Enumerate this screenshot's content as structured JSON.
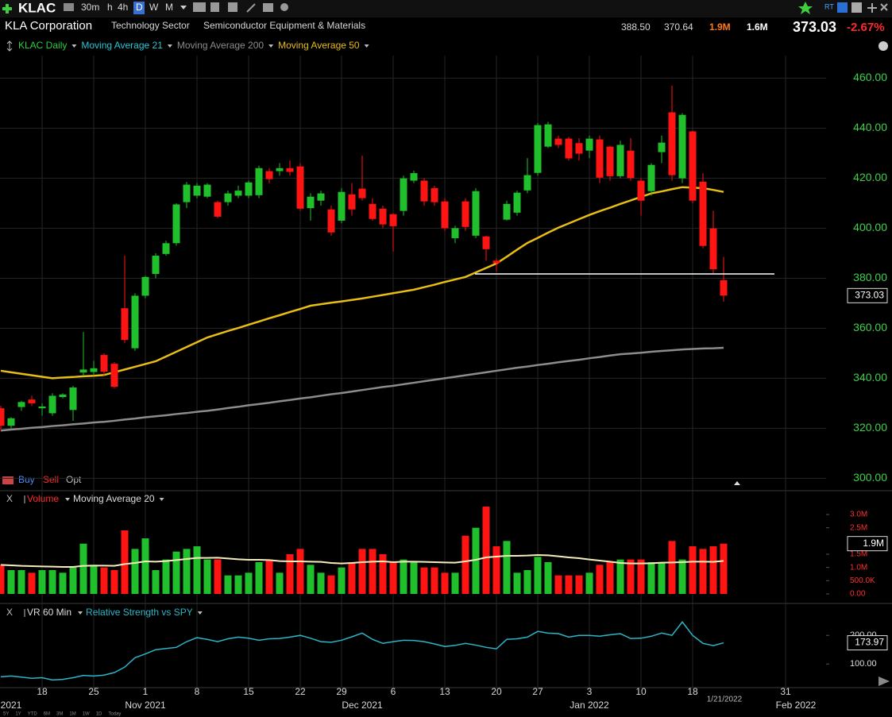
{
  "header": {
    "symbol": "KLAC",
    "intervals": [
      "30m",
      "h",
      "4h",
      "D",
      "W",
      "M"
    ],
    "company": "KLA Corporation",
    "sector": "Technology Sector",
    "industry": "Semiconductor Equipment & Materials",
    "high": "388.50",
    "low": "370.64",
    "volume": "1.9M",
    "avg_volume": "1.6M",
    "price": "373.03",
    "change": "-2.67%",
    "rt_badge": "RT",
    "trade_buttons": [
      "Buy",
      "Sell",
      "Opt"
    ],
    "ranges": [
      "5Y",
      "1Y",
      "YTD",
      "6M",
      "3M",
      "1M",
      "1W",
      "1D",
      "Today"
    ]
  },
  "chart_data": [
    {
      "type": "candlestick",
      "categories": [
        null,
        null,
        null,
        null,
        "18",
        null,
        null,
        null,
        null,
        "25",
        null,
        null,
        null,
        null,
        "1",
        null,
        null,
        null,
        null,
        "8",
        null,
        null,
        null,
        null,
        "15",
        null,
        null,
        null,
        null,
        "22",
        null,
        null,
        null,
        "29",
        null,
        null,
        null,
        null,
        "6",
        null,
        null,
        null,
        null,
        "13",
        null,
        null,
        null,
        null,
        "20",
        null,
        null,
        null,
        "27",
        null,
        null,
        null,
        null,
        "3",
        null,
        null,
        null,
        null,
        "10",
        null,
        null,
        null,
        null,
        "18",
        null,
        null,
        null,
        null,
        null,
        null,
        null,
        null,
        "31",
        null
      ],
      "month_labels": [
        null,
        "2021",
        null,
        null,
        null,
        null,
        null,
        null,
        null,
        null,
        null,
        null,
        null,
        null,
        "Nov 2021",
        null,
        null,
        null,
        null,
        null,
        null,
        null,
        null,
        null,
        null,
        null,
        null,
        null,
        null,
        null,
        null,
        null,
        null,
        null,
        null,
        "Dec 2021",
        null,
        null,
        null,
        null,
        null,
        null,
        null,
        null,
        null,
        null,
        null,
        null,
        null,
        null,
        null,
        null,
        null,
        null,
        null,
        null,
        null,
        "Jan 2022",
        null,
        null,
        null,
        null,
        null,
        null,
        null,
        null,
        null,
        null,
        null,
        null,
        null,
        null,
        null,
        null,
        null,
        null,
        null,
        "Feb 2022"
      ],
      "open": [
        328,
        321,
        328.5,
        331.5,
        328,
        326,
        332.5,
        327.3,
        342.3,
        342.5,
        349.3,
        345.8,
        368,
        352,
        373,
        381.7,
        389.7,
        394,
        410.4,
        413,
        412.6,
        410.4,
        410.4,
        413,
        413,
        413.2,
        422.8,
        422.8,
        424,
        424.7,
        408,
        411,
        407.5,
        403,
        413.5,
        415.8,
        409.7,
        407.8,
        405.6,
        406.9,
        419,
        419,
        416,
        410.7,
        396,
        410.7,
        397,
        396.7,
        387,
        403.4,
        406.2,
        415.1,
        422.1,
        432.6,
        435.8,
        435.8,
        434,
        431,
        435.5,
        432.6,
        420.8,
        431,
        419,
        414.8,
        430.4,
        446.3,
        419.9,
        438.7,
        418.6,
        399.9,
        379.2,
        null,
        null,
        null,
        null,
        null,
        null,
        null
      ],
      "high": [
        329,
        324.5,
        331,
        333,
        330,
        334,
        334,
        337,
        358.5,
        347,
        350,
        346.5,
        389,
        374,
        381,
        390,
        395,
        410,
        418.5,
        418,
        418,
        411,
        415,
        417,
        419,
        425,
        424,
        426,
        427,
        426,
        414,
        415,
        409,
        416,
        418,
        429,
        412,
        409,
        406,
        421,
        423,
        420,
        417,
        412,
        401,
        412,
        416,
        397,
        388,
        411,
        415,
        428,
        442,
        442.5,
        437,
        436.5,
        436,
        437,
        437,
        433,
        435,
        436,
        420,
        426,
        437,
        457,
        446,
        439,
        422,
        407,
        388.5,
        null,
        null,
        null,
        null,
        null,
        null,
        null
      ],
      "low": [
        319,
        320,
        327,
        329,
        325,
        325,
        332,
        323,
        341,
        341,
        341,
        336,
        354,
        351,
        372,
        380,
        389,
        393,
        408,
        412,
        412,
        404,
        409,
        412,
        412,
        412,
        418,
        421,
        421,
        407,
        403,
        409,
        397,
        402,
        405,
        411,
        403,
        400,
        390.6,
        405,
        418,
        409,
        409,
        399,
        394,
        399,
        396,
        387,
        382.7,
        403,
        405,
        414,
        421,
        432,
        432,
        427,
        427,
        428,
        418,
        419,
        420,
        419,
        405,
        413,
        426,
        419,
        418,
        410,
        392,
        382,
        370.64,
        null,
        null,
        null,
        null,
        null,
        null,
        null
      ],
      "close": [
        321,
        324,
        330.5,
        330,
        328.7,
        333,
        333.5,
        336.3,
        343.5,
        344,
        342.6,
        336.6,
        355.3,
        373,
        380.5,
        389,
        394,
        409.5,
        417.4,
        417,
        417.4,
        404.6,
        413.9,
        415,
        418.3,
        424,
        419.6,
        424,
        422.5,
        407.8,
        412.6,
        413.9,
        398.3,
        414.5,
        407.5,
        412,
        403.7,
        401.5,
        400.8,
        419.9,
        422,
        410.7,
        410.4,
        400,
        400,
        400.5,
        414.8,
        391.6,
        386,
        409.7,
        414.2,
        421.2,
        441.2,
        441.5,
        433.3,
        427.9,
        429.8,
        435.8,
        420.2,
        420.8,
        433.3,
        420,
        411,
        425.3,
        434.2,
        421.2,
        445.3,
        411,
        392.9,
        383.6,
        373.03,
        null,
        null,
        null,
        null,
        null,
        null,
        null
      ],
      "up_color": "#1fc02b",
      "down_color": "#ff1414",
      "legend": [
        {
          "name": "KLAC Daily",
          "color": "#2ecc40"
        },
        {
          "name": "Moving Average 21",
          "color": "#29c5d6"
        }
      ],
      "series": [
        {
          "name": "Moving Average 200",
          "color": "#8c8c8c",
          "values": [
            319.1,
            319.5,
            319.8,
            320.2,
            320.5,
            320.9,
            321.2,
            321.6,
            321.9,
            322.3,
            322.6,
            323.0,
            323.5,
            323.9,
            324.4,
            324.8,
            325.2,
            325.7,
            326.1,
            326.6,
            327.0,
            327.5,
            328.1,
            328.6,
            329.2,
            329.7,
            330.2,
            330.8,
            331.3,
            331.9,
            332.4,
            333.0,
            333.6,
            334.1,
            334.7,
            335.3,
            335.9,
            336.5,
            337.0,
            337.6,
            338.2,
            338.8,
            339.4,
            340.0,
            340.6,
            341.2,
            341.8,
            342.4,
            343.0,
            343.6,
            344.2,
            344.7,
            345.3,
            345.8,
            346.4,
            346.9,
            347.4,
            348.0,
            348.5,
            349.1,
            349.6,
            349.9,
            350.2,
            350.6,
            350.9,
            351.2,
            351.5,
            351.7,
            351.9,
            352.0,
            352.2,
            null,
            null,
            null,
            null,
            null,
            null,
            null
          ]
        },
        {
          "name": "Moving Average 50",
          "color": "#e8bd14",
          "values": [
            343.0,
            342.4,
            341.8,
            341.2,
            340.6,
            340.0,
            340.3,
            340.5,
            340.8,
            341.0,
            341.3,
            342.4,
            343.5,
            344.6,
            345.7,
            346.8,
            348.7,
            350.6,
            352.5,
            354.4,
            356.3,
            357.6,
            358.9,
            360.1,
            361.4,
            362.7,
            364.0,
            365.2,
            366.5,
            367.7,
            369.0,
            369.6,
            370.2,
            370.7,
            371.3,
            371.9,
            372.6,
            373.3,
            374.0,
            374.7,
            375.4,
            376.4,
            377.4,
            378.5,
            379.5,
            380.5,
            382.3,
            384.1,
            385.9,
            388.6,
            391.4,
            394.1,
            396.1,
            398.2,
            400.2,
            401.9,
            403.6,
            405.3,
            406.8,
            408.2,
            409.7,
            411.1,
            412.5,
            413.9,
            414.7,
            415.6,
            416.4,
            416.2,
            416.0,
            415.3,
            414.5,
            null,
            null,
            null,
            null,
            null,
            null,
            null
          ]
        }
      ],
      "ylim": [
        296,
        469
      ],
      "yticks": [
        {
          "value": 300,
          "label": "300.00"
        },
        {
          "value": 320,
          "label": "320.00"
        },
        {
          "value": 340,
          "label": "340.00"
        },
        {
          "value": 360,
          "label": "360.00"
        },
        {
          "value": 380,
          "label": "380.00"
        },
        {
          "value": 400,
          "label": "400.00"
        },
        {
          "value": 420,
          "label": "420.00"
        },
        {
          "value": 440,
          "label": "440.00"
        },
        {
          "value": 460,
          "label": "460.00"
        }
      ],
      "last_label": "373.03",
      "hline": 381.7,
      "last_date_label": "1/21/2022",
      "grid": true
    },
    {
      "type": "bar",
      "close_label": "X",
      "title": "Volume",
      "title_color": "#ff2a2a",
      "values": [
        1100000,
        900000,
        900000,
        800000,
        900000,
        900000,
        800000,
        1000000,
        1900000,
        1100000,
        1000000,
        900000,
        2400000,
        1700000,
        2100000,
        900000,
        1300000,
        1600000,
        1700000,
        1800000,
        1300000,
        1300000,
        700000,
        700000,
        800000,
        1200000,
        1300000,
        800000,
        1500000,
        1700000,
        1100000,
        800000,
        700000,
        1000000,
        1200000,
        1700000,
        1700000,
        1500000,
        1200000,
        1300000,
        1200000,
        1000000,
        1000000,
        800000,
        800000,
        2200000,
        2500000,
        3300000,
        1800000,
        2000000,
        800000,
        900000,
        1400000,
        1200000,
        700000,
        700000,
        700000,
        800000,
        1100000,
        1200000,
        1300000,
        1300000,
        1300000,
        1200000,
        1200000,
        2000000,
        1300000,
        1800000,
        1700000,
        1800000,
        1900000
      ],
      "series": [
        {
          "name": "Moving Average 20",
          "color": "#f5ecbc",
          "values": [
            1100000,
            1080000,
            1060000,
            1050000,
            1040000,
            1030000,
            1020000,
            1020000,
            1060000,
            1070000,
            1070000,
            1060000,
            1130000,
            1170000,
            1230000,
            1220000,
            1240000,
            1280000,
            1320000,
            1360000,
            1360000,
            1370000,
            1340000,
            1310000,
            1290000,
            1290000,
            1280000,
            1240000,
            1230000,
            1230000,
            1220000,
            1210000,
            1170000,
            1150000,
            1170000,
            1200000,
            1220000,
            1230000,
            1200000,
            1220000,
            1220000,
            1210000,
            1200000,
            1190000,
            1180000,
            1230000,
            1290000,
            1380000,
            1410000,
            1440000,
            1440000,
            1450000,
            1470000,
            1460000,
            1420000,
            1380000,
            1350000,
            1300000,
            1260000,
            1220000,
            1170000,
            1150000,
            1150000,
            1160000,
            1180000,
            1190000,
            1200000,
            1220000,
            1220000,
            1210000,
            1250000
          ]
        }
      ],
      "ylim": [
        0,
        3300000
      ],
      "yticks": [
        {
          "value": 0,
          "label": "0.00"
        },
        {
          "value": 500000,
          "label": "500.0K"
        },
        {
          "value": 1000000,
          "label": "1.0M"
        },
        {
          "value": 1500000,
          "label": "1.5M"
        },
        {
          "value": 2500000,
          "label": "2.5M"
        },
        {
          "value": 3000000,
          "label": "3.0M"
        }
      ],
      "last_label": "1.9M"
    },
    {
      "type": "line",
      "close_label": "X",
      "title": "VR 60 Min",
      "series": [
        {
          "name": "Relative Strength vs SPY",
          "color": "#2bb5c9",
          "values": [
            55,
            58,
            54,
            50,
            52,
            44,
            46,
            52,
            60,
            58,
            61,
            70,
            89,
            122,
            135,
            150,
            154,
            158,
            178,
            192,
            186,
            178,
            188,
            194,
            190,
            183,
            188,
            189,
            194,
            200,
            190,
            178,
            176,
            183,
            195,
            208,
            186,
            172,
            178,
            183,
            182,
            178,
            170,
            161,
            165,
            172,
            166,
            158,
            153,
            186,
            188,
            194,
            214,
            208,
            206,
            194,
            200,
            200,
            197,
            202,
            206,
            189,
            190,
            197,
            208,
            200,
            247,
            200,
            172,
            164,
            173.97
          ]
        }
      ],
      "ylim": [
        20,
        270
      ],
      "yticks": [
        {
          "value": 100,
          "label": "100.00"
        },
        {
          "value": 200,
          "label": "200.00"
        }
      ],
      "last_label": "173.97"
    }
  ]
}
